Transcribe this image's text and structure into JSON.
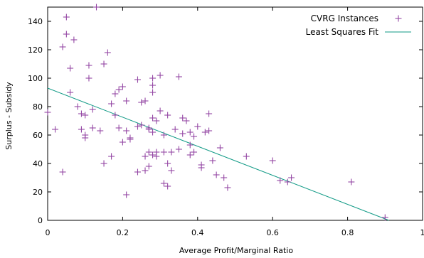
{
  "chart_data": {
    "type": "scatter",
    "xlabel": "Average Profit/Marginal Ratio",
    "ylabel": "Surplus - Subsidy",
    "xlim": [
      0,
      1
    ],
    "ylim": [
      0,
      150
    ],
    "xticks": [
      0,
      0.2,
      0.4,
      0.6,
      0.8,
      1
    ],
    "xtick_labels": [
      "0",
      "0.2",
      "0.4",
      "0.6",
      "0.8",
      "1"
    ],
    "yticks": [
      0,
      20,
      40,
      60,
      80,
      100,
      120,
      140
    ],
    "ytick_labels": [
      "0",
      "20",
      "40",
      "60",
      "80",
      "100",
      "120",
      "140"
    ],
    "grid": false,
    "legend_position": "top-right",
    "series": [
      {
        "name": "CVRG Instances",
        "marker": "plus",
        "color": "#9447a4",
        "points": [
          [
            0.0,
            76
          ],
          [
            0.02,
            64
          ],
          [
            0.04,
            34
          ],
          [
            0.04,
            122
          ],
          [
            0.05,
            143
          ],
          [
            0.05,
            131
          ],
          [
            0.06,
            107
          ],
          [
            0.06,
            90
          ],
          [
            0.07,
            127
          ],
          [
            0.08,
            80
          ],
          [
            0.09,
            75
          ],
          [
            0.09,
            64
          ],
          [
            0.1,
            60
          ],
          [
            0.1,
            74
          ],
          [
            0.1,
            58
          ],
          [
            0.11,
            109
          ],
          [
            0.11,
            100
          ],
          [
            0.12,
            78
          ],
          [
            0.12,
            65
          ],
          [
            0.13,
            150
          ],
          [
            0.14,
            63
          ],
          [
            0.15,
            110
          ],
          [
            0.15,
            40
          ],
          [
            0.16,
            118
          ],
          [
            0.17,
            45
          ],
          [
            0.17,
            82
          ],
          [
            0.18,
            89
          ],
          [
            0.18,
            74
          ],
          [
            0.19,
            92
          ],
          [
            0.19,
            65
          ],
          [
            0.2,
            94
          ],
          [
            0.2,
            55
          ],
          [
            0.21,
            84
          ],
          [
            0.21,
            63
          ],
          [
            0.21,
            18
          ],
          [
            0.22,
            57
          ],
          [
            0.22,
            58
          ],
          [
            0.24,
            99
          ],
          [
            0.24,
            34
          ],
          [
            0.24,
            66
          ],
          [
            0.25,
            83
          ],
          [
            0.25,
            67
          ],
          [
            0.26,
            35
          ],
          [
            0.26,
            45
          ],
          [
            0.26,
            84
          ],
          [
            0.27,
            48
          ],
          [
            0.27,
            64
          ],
          [
            0.27,
            65
          ],
          [
            0.27,
            38
          ],
          [
            0.28,
            100
          ],
          [
            0.28,
            95
          ],
          [
            0.28,
            90
          ],
          [
            0.28,
            72
          ],
          [
            0.28,
            46
          ],
          [
            0.28,
            62
          ],
          [
            0.29,
            70
          ],
          [
            0.29,
            45
          ],
          [
            0.29,
            48
          ],
          [
            0.3,
            102
          ],
          [
            0.3,
            77
          ],
          [
            0.31,
            26
          ],
          [
            0.31,
            48
          ],
          [
            0.31,
            60
          ],
          [
            0.32,
            74
          ],
          [
            0.32,
            40
          ],
          [
            0.32,
            24
          ],
          [
            0.33,
            48
          ],
          [
            0.33,
            35
          ],
          [
            0.34,
            64
          ],
          [
            0.35,
            101
          ],
          [
            0.35,
            50
          ],
          [
            0.36,
            72
          ],
          [
            0.36,
            61
          ],
          [
            0.37,
            70
          ],
          [
            0.38,
            46
          ],
          [
            0.38,
            62
          ],
          [
            0.38,
            53
          ],
          [
            0.39,
            59
          ],
          [
            0.39,
            48
          ],
          [
            0.4,
            66
          ],
          [
            0.41,
            39
          ],
          [
            0.41,
            37
          ],
          [
            0.42,
            62
          ],
          [
            0.43,
            63
          ],
          [
            0.43,
            75
          ],
          [
            0.44,
            42
          ],
          [
            0.45,
            32
          ],
          [
            0.46,
            51
          ],
          [
            0.47,
            30
          ],
          [
            0.48,
            23
          ],
          [
            0.53,
            45
          ],
          [
            0.6,
            42
          ],
          [
            0.62,
            28
          ],
          [
            0.64,
            27
          ],
          [
            0.65,
            30
          ],
          [
            0.81,
            27
          ],
          [
            0.9,
            2
          ]
        ]
      },
      {
        "name": "Least Squares Fit",
        "type": "line",
        "color": "#119a86",
        "x": [
          0,
          0.91
        ],
        "y": [
          93,
          0
        ]
      }
    ]
  }
}
